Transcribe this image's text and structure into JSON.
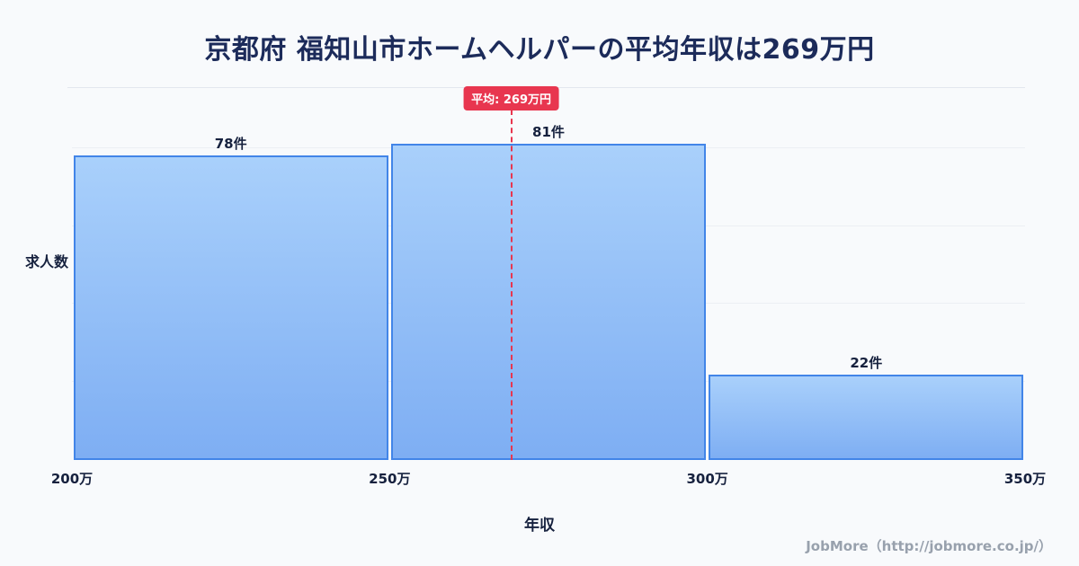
{
  "header": {
    "title": "京都府 福知山市ホームヘルパーの平均年収は269万円"
  },
  "chart_data": {
    "type": "bar",
    "title": "京都府 福知山市ホームヘルパーの平均年収は269万円",
    "xlabel": "年収",
    "ylabel": "求人数",
    "x_range": [
      200,
      350
    ],
    "ylim": [
      0,
      88
    ],
    "grid": "horizontal",
    "y_gridlines": [
      20,
      40,
      60,
      80
    ],
    "x_ticks": [
      {
        "value": 200,
        "label": "200万"
      },
      {
        "value": 250,
        "label": "250万"
      },
      {
        "value": 300,
        "label": "300万"
      },
      {
        "value": 350,
        "label": "350万"
      }
    ],
    "bins": [
      {
        "range": [
          200,
          250
        ],
        "count": 78,
        "label": "78件"
      },
      {
        "range": [
          250,
          300
        ],
        "count": 81,
        "label": "81件"
      },
      {
        "range": [
          300,
          350
        ],
        "count": 22,
        "label": "22件"
      }
    ],
    "average": {
      "value": 269,
      "label": "平均: 269万円"
    }
  },
  "colors": {
    "background": "#f8fafc",
    "title": "#1c2b5a",
    "bar_top": "#a9d0fb",
    "bar_bottom": "#7eaef3",
    "bar_border": "#4285e8",
    "average": "#e8364f",
    "gridline": "#eceff4",
    "footer_text": "#98a1ad"
  },
  "footer": {
    "credit": "JobMore（http://jobmore.co.jp/）"
  }
}
